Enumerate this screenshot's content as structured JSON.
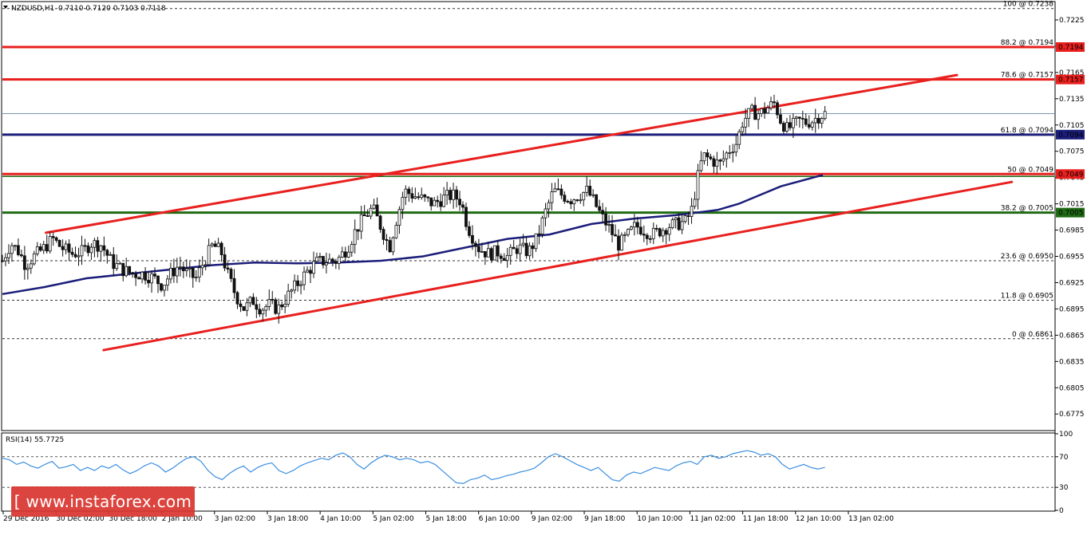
{
  "header": {
    "symbol": "NZDUSD,H1",
    "ohlc": "0.7110 0.7120 0.7103 0.7118"
  },
  "watermark": "[ www.instaforex.com ]",
  "colors": {
    "bull": "#111111",
    "bear": "#111111",
    "ma": "#1b1d7a",
    "trend": "#e8201e",
    "level_red": "#e8201e",
    "level_navy": "#1b1d7a",
    "level_green": "#1f6b13",
    "rsi": "#3d8fe0",
    "current": "#7a97b4"
  },
  "chart_data": [
    {
      "type": "candlestick",
      "title": "NZDUSD,H1",
      "ylim": [
        0.6757,
        0.7245
      ],
      "current_price": 0.7118,
      "y_ticks": [
        "0.7225",
        "0.7195",
        "0.7165",
        "0.7135",
        "0.7105",
        "0.7075",
        "0.7045",
        "0.7015",
        "0.6985",
        "0.6955",
        "0.6925",
        "0.6895",
        "0.6865",
        "0.6835",
        "0.6805",
        "0.6775"
      ],
      "x_tick_labels": [
        "29 Dec 2016",
        "30 Dec 02:00",
        "30 Dec 18:00",
        "2 Jan 10:00",
        "3 Jan 02:00",
        "3 Jan 18:00",
        "4 Jan 10:00",
        "5 Jan 02:00",
        "5 Jan 18:00",
        "6 Jan 10:00",
        "9 Jan 02:00",
        "9 Jan 18:00",
        "10 Jan 10:00",
        "11 Jan 02:00",
        "11 Jan 18:00",
        "12 Jan 10:00",
        "13 Jan 02:00"
      ],
      "fibonacci": [
        {
          "label": "100 @ 0.7238",
          "price": 0.7238,
          "style": "dashed"
        },
        {
          "label": "88.2 @ 0.7194",
          "price": 0.7194,
          "style": "solid",
          "color": "red",
          "tag": "0.7194"
        },
        {
          "label": "78.6 @ 0.7157",
          "price": 0.7157,
          "style": "solid",
          "color": "red",
          "tag": "0.7157"
        },
        {
          "label": "61.8 @ 0.7094",
          "price": 0.7094,
          "style": "solid",
          "color": "navy",
          "tag": "0.7094"
        },
        {
          "label": "50 @ 0.7049",
          "price": 0.7049,
          "style": "solid",
          "color": "red",
          "tag": "0.7049"
        },
        {
          "label": "38.2 @ 0.7005",
          "price": 0.7005,
          "style": "solid",
          "color": "green",
          "tag": "0.7005"
        },
        {
          "label": "23.6 @ 0.6950",
          "price": 0.695,
          "style": "dashed"
        },
        {
          "label": "11.8 @ 0.6905",
          "price": 0.6905,
          "style": "dashed"
        },
        {
          "label": "0 @ 0.6861",
          "price": 0.6861,
          "style": "dashed"
        }
      ],
      "trendlines": [
        {
          "name": "upper channel",
          "from": [
            0.0414,
            0.6982
          ],
          "to": [
            0.9075,
            0.7162
          ]
        },
        {
          "name": "lower channel",
          "from": [
            0.0962,
            0.6848
          ],
          "to": [
            0.9596,
            0.704
          ]
        }
      ],
      "path": [
        [
          0,
          0.695
        ],
        [
          0.008,
          0.697
        ],
        [
          0.016,
          0.696
        ],
        [
          0.022,
          0.6945
        ],
        [
          0.03,
          0.6955
        ],
        [
          0.04,
          0.6965
        ],
        [
          0.048,
          0.6975
        ],
        [
          0.056,
          0.6965
        ],
        [
          0.066,
          0.6958
        ],
        [
          0.076,
          0.696
        ],
        [
          0.084,
          0.697
        ],
        [
          0.094,
          0.6968
        ],
        [
          0.104,
          0.6948
        ],
        [
          0.114,
          0.694
        ],
        [
          0.124,
          0.6935
        ],
        [
          0.134,
          0.6935
        ],
        [
          0.144,
          0.693
        ],
        [
          0.152,
          0.6922
        ],
        [
          0.16,
          0.6935
        ],
        [
          0.168,
          0.6945
        ],
        [
          0.176,
          0.6935
        ],
        [
          0.184,
          0.693
        ],
        [
          0.192,
          0.695
        ],
        [
          0.2,
          0.6968
        ],
        [
          0.208,
          0.696
        ],
        [
          0.214,
          0.6935
        ],
        [
          0.222,
          0.691
        ],
        [
          0.23,
          0.6895
        ],
        [
          0.238,
          0.6905
        ],
        [
          0.246,
          0.6895
        ],
        [
          0.254,
          0.69
        ],
        [
          0.262,
          0.6895
        ],
        [
          0.27,
          0.6908
        ],
        [
          0.278,
          0.692
        ],
        [
          0.288,
          0.6935
        ],
        [
          0.298,
          0.6948
        ],
        [
          0.308,
          0.695
        ],
        [
          0.318,
          0.695
        ],
        [
          0.328,
          0.6965
        ],
        [
          0.336,
          0.6985
        ],
        [
          0.344,
          0.7
        ],
        [
          0.352,
          0.701
        ],
        [
          0.36,
          0.6988
        ],
        [
          0.368,
          0.6965
        ],
        [
          0.374,
          0.6995
        ],
        [
          0.382,
          0.703
        ],
        [
          0.39,
          0.7025
        ],
        [
          0.4,
          0.702
        ],
        [
          0.41,
          0.7015
        ],
        [
          0.42,
          0.7022
        ],
        [
          0.428,
          0.7025
        ],
        [
          0.436,
          0.7018
        ],
        [
          0.442,
          0.699
        ],
        [
          0.452,
          0.6965
        ],
        [
          0.462,
          0.6958
        ],
        [
          0.472,
          0.696
        ],
        [
          0.48,
          0.6955
        ],
        [
          0.49,
          0.6965
        ],
        [
          0.5,
          0.696
        ],
        [
          0.508,
          0.6975
        ],
        [
          0.516,
          0.7005
        ],
        [
          0.524,
          0.703
        ],
        [
          0.532,
          0.7025
        ],
        [
          0.54,
          0.702
        ],
        [
          0.548,
          0.7025
        ],
        [
          0.556,
          0.703
        ],
        [
          0.562,
          0.7018
        ],
        [
          0.57,
          0.7
        ],
        [
          0.578,
          0.6985
        ],
        [
          0.586,
          0.6968
        ],
        [
          0.594,
          0.6978
        ],
        [
          0.602,
          0.699
        ],
        [
          0.61,
          0.6985
        ],
        [
          0.618,
          0.698
        ],
        [
          0.626,
          0.6985
        ],
        [
          0.634,
          0.699
        ],
        [
          0.642,
          0.6992
        ],
        [
          0.65,
          0.6995
        ],
        [
          0.656,
          0.701
        ],
        [
          0.66,
          0.704
        ],
        [
          0.666,
          0.707
        ],
        [
          0.674,
          0.7065
        ],
        [
          0.682,
          0.706
        ],
        [
          0.69,
          0.7075
        ],
        [
          0.698,
          0.7085
        ],
        [
          0.704,
          0.711
        ],
        [
          0.712,
          0.712
        ],
        [
          0.72,
          0.7118
        ],
        [
          0.728,
          0.7125
        ],
        [
          0.734,
          0.713
        ],
        [
          0.74,
          0.711
        ],
        [
          0.746,
          0.71
        ],
        [
          0.752,
          0.7105
        ],
        [
          0.758,
          0.711
        ],
        [
          0.764,
          0.7108
        ],
        [
          0.77,
          0.711
        ],
        [
          0.776,
          0.7115
        ],
        [
          0.782,
          0.7118
        ]
      ],
      "moving_average": [
        [
          0,
          0.6912
        ],
        [
          0.04,
          0.692
        ],
        [
          0.08,
          0.693
        ],
        [
          0.12,
          0.6935
        ],
        [
          0.16,
          0.694
        ],
        [
          0.2,
          0.6945
        ],
        [
          0.24,
          0.6948
        ],
        [
          0.28,
          0.6947
        ],
        [
          0.32,
          0.6948
        ],
        [
          0.36,
          0.695
        ],
        [
          0.4,
          0.6955
        ],
        [
          0.44,
          0.6965
        ],
        [
          0.48,
          0.6975
        ],
        [
          0.52,
          0.698
        ],
        [
          0.56,
          0.6992
        ],
        [
          0.6,
          0.6998
        ],
        [
          0.64,
          0.7002
        ],
        [
          0.68,
          0.7008
        ],
        [
          0.7,
          0.7015
        ],
        [
          0.74,
          0.7035
        ],
        [
          0.78,
          0.7048
        ]
      ]
    },
    {
      "type": "line",
      "title": "RSI(14) 55.7725",
      "ylim": [
        0,
        100
      ],
      "levels": [
        70,
        30
      ],
      "y_ticks": [
        "100",
        "70",
        "30",
        "0"
      ],
      "values": [
        68,
        66,
        60,
        63,
        58,
        55,
        60,
        64,
        55,
        57,
        60,
        52,
        56,
        52,
        58,
        55,
        60,
        53,
        48,
        52,
        58,
        62,
        58,
        50,
        55,
        62,
        68,
        70,
        64,
        52,
        44,
        40,
        48,
        54,
        58,
        50,
        56,
        60,
        62,
        52,
        48,
        52,
        58,
        62,
        65,
        68,
        66,
        72,
        75,
        70,
        60,
        54,
        62,
        68,
        72,
        70,
        66,
        68,
        66,
        62,
        64,
        60,
        52,
        44,
        36,
        35,
        40,
        42,
        46,
        40,
        42,
        45,
        47,
        50,
        52,
        55,
        62,
        70,
        74,
        70,
        65,
        60,
        56,
        52,
        56,
        48,
        40,
        38,
        46,
        50,
        48,
        52,
        56,
        54,
        52,
        58,
        62,
        64,
        60,
        70,
        72,
        68,
        70,
        74,
        76,
        78,
        76,
        72,
        74,
        70,
        60,
        54,
        57,
        60,
        56,
        54,
        56
      ]
    }
  ]
}
